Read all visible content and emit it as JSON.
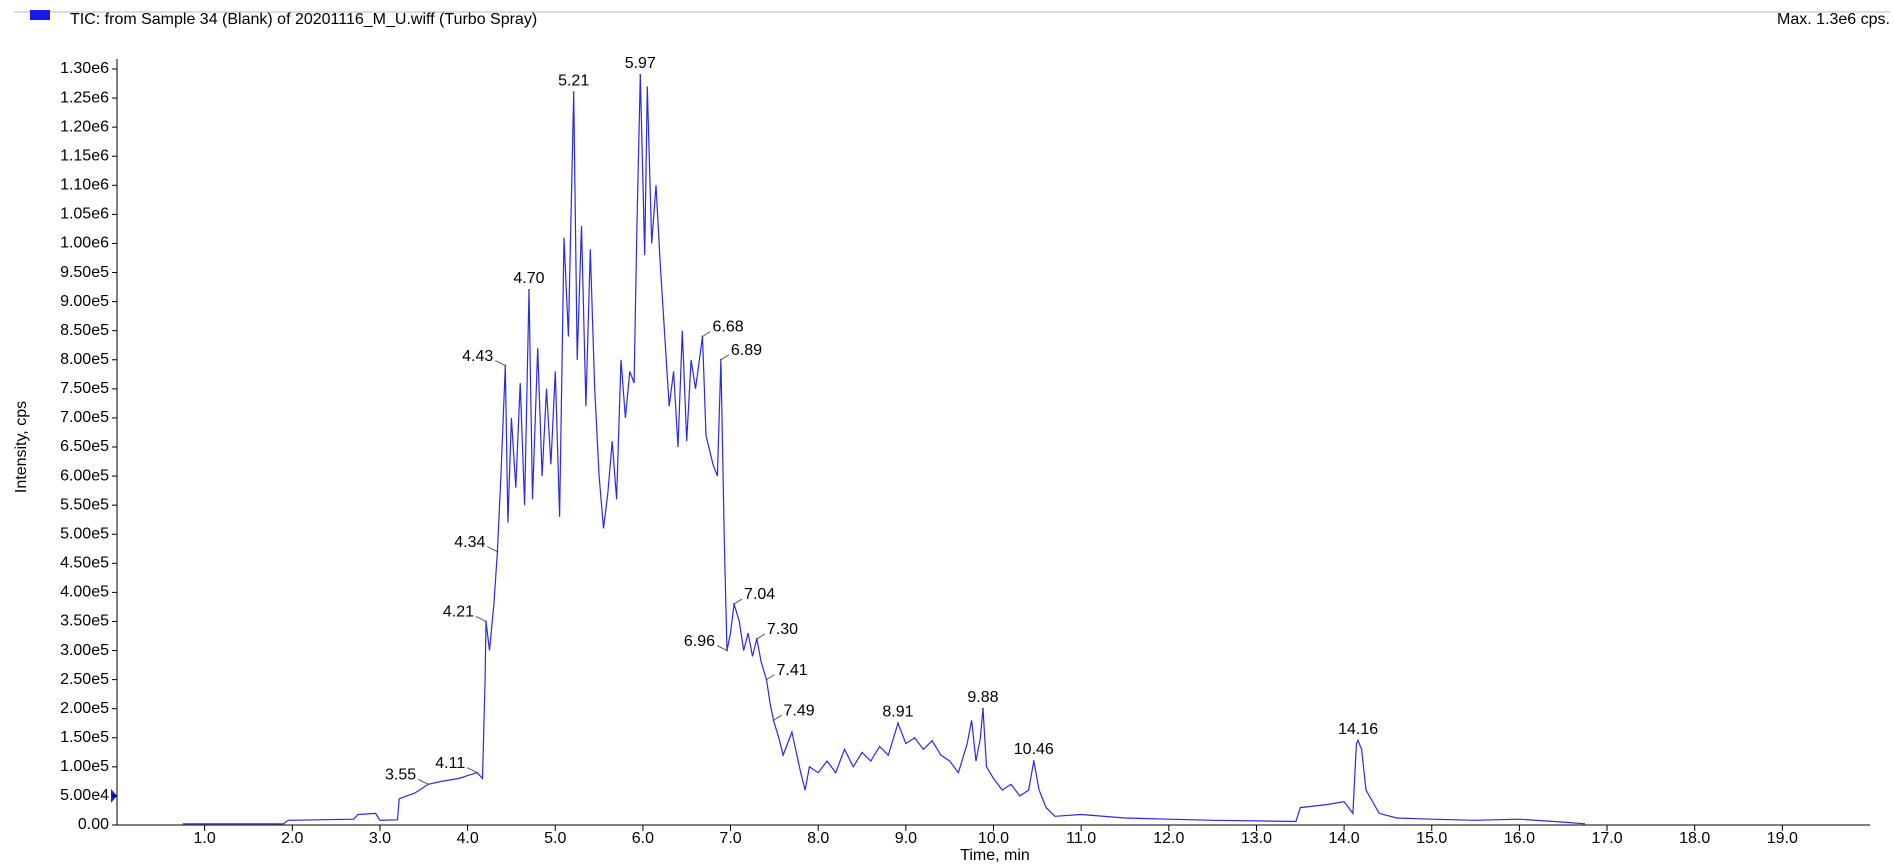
{
  "chart_data": {
    "type": "line",
    "max_label": "Max. 1.3e6 cps.",
    "xlabel": "Time, min",
    "ylabel": "Intensity, cps",
    "xlim": [
      0,
      20
    ],
    "ylim": [
      0,
      1300000
    ],
    "xticks": [
      {
        "value": 1,
        "label": "1.0"
      },
      {
        "value": 2,
        "label": "2.0"
      },
      {
        "value": 3,
        "label": "3.0"
      },
      {
        "value": 4,
        "label": "4.0"
      },
      {
        "value": 5,
        "label": "5.0"
      },
      {
        "value": 6,
        "label": "6.0"
      },
      {
        "value": 7,
        "label": "7.0"
      },
      {
        "value": 8,
        "label": "8.0"
      },
      {
        "value": 9,
        "label": "9.0"
      },
      {
        "value": 10,
        "label": "10.0"
      },
      {
        "value": 11,
        "label": "11.0"
      },
      {
        "value": 12,
        "label": "12.0"
      },
      {
        "value": 13,
        "label": "13.0"
      },
      {
        "value": 14,
        "label": "14.0"
      },
      {
        "value": 15,
        "label": "15.0"
      },
      {
        "value": 16,
        "label": "16.0"
      },
      {
        "value": 17,
        "label": "17.0"
      },
      {
        "value": 18,
        "label": "18.0"
      },
      {
        "value": 19,
        "label": "19.0"
      }
    ],
    "yticks": [
      {
        "value": 0,
        "label": "0.00"
      },
      {
        "value": 50000,
        "label": "5.00e4"
      },
      {
        "value": 100000,
        "label": "1.00e5"
      },
      {
        "value": 150000,
        "label": "1.50e5"
      },
      {
        "value": 200000,
        "label": "2.00e5"
      },
      {
        "value": 250000,
        "label": "2.50e5"
      },
      {
        "value": 300000,
        "label": "3.00e5"
      },
      {
        "value": 350000,
        "label": "3.50e5"
      },
      {
        "value": 400000,
        "label": "4.00e5"
      },
      {
        "value": 450000,
        "label": "4.50e5"
      },
      {
        "value": 500000,
        "label": "5.00e5"
      },
      {
        "value": 550000,
        "label": "5.50e5"
      },
      {
        "value": 600000,
        "label": "6.00e5"
      },
      {
        "value": 650000,
        "label": "6.50e5"
      },
      {
        "value": 700000,
        "label": "7.00e5"
      },
      {
        "value": 750000,
        "label": "7.50e5"
      },
      {
        "value": 800000,
        "label": "8.00e5"
      },
      {
        "value": 850000,
        "label": "8.50e5"
      },
      {
        "value": 900000,
        "label": "9.00e5"
      },
      {
        "value": 950000,
        "label": "9.50e5"
      },
      {
        "value": 1000000,
        "label": "1.00e6"
      },
      {
        "value": 1050000,
        "label": "1.05e6"
      },
      {
        "value": 1100000,
        "label": "1.10e6"
      },
      {
        "value": 1150000,
        "label": "1.15e6"
      },
      {
        "value": 1200000,
        "label": "1.20e6"
      },
      {
        "value": 1250000,
        "label": "1.25e6"
      },
      {
        "value": 1300000,
        "label": "1.30e6"
      }
    ],
    "x": [
      0.75,
      1.9,
      1.95,
      2.7,
      2.75,
      2.95,
      3.0,
      3.2,
      3.22,
      3.4,
      3.55,
      3.7,
      3.9,
      4.0,
      4.11,
      4.17,
      4.2,
      4.21,
      4.25,
      4.3,
      4.34,
      4.38,
      4.43,
      4.46,
      4.5,
      4.55,
      4.6,
      4.65,
      4.7,
      4.74,
      4.8,
      4.85,
      4.9,
      4.95,
      5.0,
      5.05,
      5.1,
      5.15,
      5.21,
      5.25,
      5.3,
      5.35,
      5.4,
      5.45,
      5.5,
      5.55,
      5.6,
      5.65,
      5.7,
      5.75,
      5.8,
      5.85,
      5.9,
      5.93,
      5.97,
      6.02,
      6.05,
      6.1,
      6.15,
      6.2,
      6.25,
      6.3,
      6.35,
      6.4,
      6.45,
      6.5,
      6.55,
      6.6,
      6.68,
      6.72,
      6.8,
      6.85,
      6.89,
      6.93,
      6.96,
      7.0,
      7.04,
      7.1,
      7.15,
      7.2,
      7.25,
      7.3,
      7.35,
      7.41,
      7.45,
      7.49,
      7.55,
      7.6,
      7.7,
      7.8,
      7.85,
      7.9,
      8.0,
      8.1,
      8.2,
      8.3,
      8.4,
      8.5,
      8.6,
      8.7,
      8.8,
      8.91,
      9.0,
      9.1,
      9.2,
      9.3,
      9.4,
      9.5,
      9.6,
      9.7,
      9.75,
      9.8,
      9.85,
      9.88,
      9.92,
      10.0,
      10.1,
      10.2,
      10.3,
      10.4,
      10.46,
      10.52,
      10.6,
      10.7,
      11.0,
      11.5,
      12.0,
      12.5,
      13.0,
      13.45,
      13.5,
      13.8,
      14.0,
      14.1,
      14.14,
      14.16,
      14.2,
      14.25,
      14.4,
      14.6,
      15.0,
      15.5,
      16.0,
      16.5,
      16.75
    ],
    "series": [
      {
        "name": "TIC: from Sample 34 (Blank) of 20201116_M_U.wiff (Turbo Spray)",
        "color": "#2a2ae6",
        "values": [
          2000,
          2000,
          8000,
          10000,
          18000,
          20000,
          8000,
          9000,
          45000,
          55000,
          70000,
          75000,
          80000,
          85000,
          90000,
          80000,
          250000,
          350000,
          300000,
          380000,
          470000,
          600000,
          790000,
          520000,
          700000,
          580000,
          760000,
          550000,
          920000,
          560000,
          820000,
          600000,
          750000,
          620000,
          780000,
          530000,
          1010000,
          840000,
          1260000,
          800000,
          1030000,
          720000,
          990000,
          750000,
          600000,
          510000,
          570000,
          660000,
          560000,
          800000,
          700000,
          780000,
          760000,
          1020000,
          1290000,
          980000,
          1270000,
          1000000,
          1100000,
          960000,
          840000,
          720000,
          780000,
          650000,
          850000,
          660000,
          800000,
          750000,
          840000,
          670000,
          620000,
          600000,
          800000,
          480000,
          300000,
          330000,
          380000,
          350000,
          300000,
          330000,
          290000,
          320000,
          280000,
          250000,
          210000,
          180000,
          150000,
          120000,
          160000,
          90000,
          60000,
          100000,
          90000,
          110000,
          90000,
          130000,
          100000,
          125000,
          110000,
          135000,
          120000,
          175000,
          140000,
          150000,
          130000,
          145000,
          120000,
          110000,
          90000,
          140000,
          180000,
          110000,
          150000,
          200000,
          100000,
          80000,
          60000,
          70000,
          50000,
          60000,
          110000,
          60000,
          30000,
          15000,
          18000,
          12000,
          10000,
          8000,
          7000,
          6000,
          30000,
          35000,
          40000,
          20000,
          140000,
          145000,
          130000,
          60000,
          20000,
          12000,
          10000,
          8000,
          10000,
          5000,
          2000
        ]
      }
    ],
    "peaks": [
      {
        "label": "3.55",
        "x": 3.55,
        "y": 70000
      },
      {
        "label": "4.11",
        "x": 4.11,
        "y": 90000
      },
      {
        "label": "4.21",
        "x": 4.21,
        "y": 350000
      },
      {
        "label": "4.34",
        "x": 4.34,
        "y": 470000
      },
      {
        "label": "4.43",
        "x": 4.43,
        "y": 790000
      },
      {
        "label": "4.70",
        "x": 4.7,
        "y": 920000
      },
      {
        "label": "5.21",
        "x": 5.21,
        "y": 1260000
      },
      {
        "label": "5.97",
        "x": 5.97,
        "y": 1290000
      },
      {
        "label": "6.68",
        "x": 6.68,
        "y": 840000
      },
      {
        "label": "6.89",
        "x": 6.89,
        "y": 800000
      },
      {
        "label": "6.96",
        "x": 6.96,
        "y": 300000
      },
      {
        "label": "7.04",
        "x": 7.04,
        "y": 380000
      },
      {
        "label": "7.30",
        "x": 7.3,
        "y": 320000
      },
      {
        "label": "7.41",
        "x": 7.41,
        "y": 250000
      },
      {
        "label": "7.49",
        "x": 7.49,
        "y": 180000
      },
      {
        "label": "8.91",
        "x": 8.91,
        "y": 175000
      },
      {
        "label": "9.88",
        "x": 9.88,
        "y": 200000
      },
      {
        "label": "10.46",
        "x": 10.46,
        "y": 110000
      },
      {
        "label": "14.16",
        "x": 14.16,
        "y": 145000
      }
    ]
  }
}
